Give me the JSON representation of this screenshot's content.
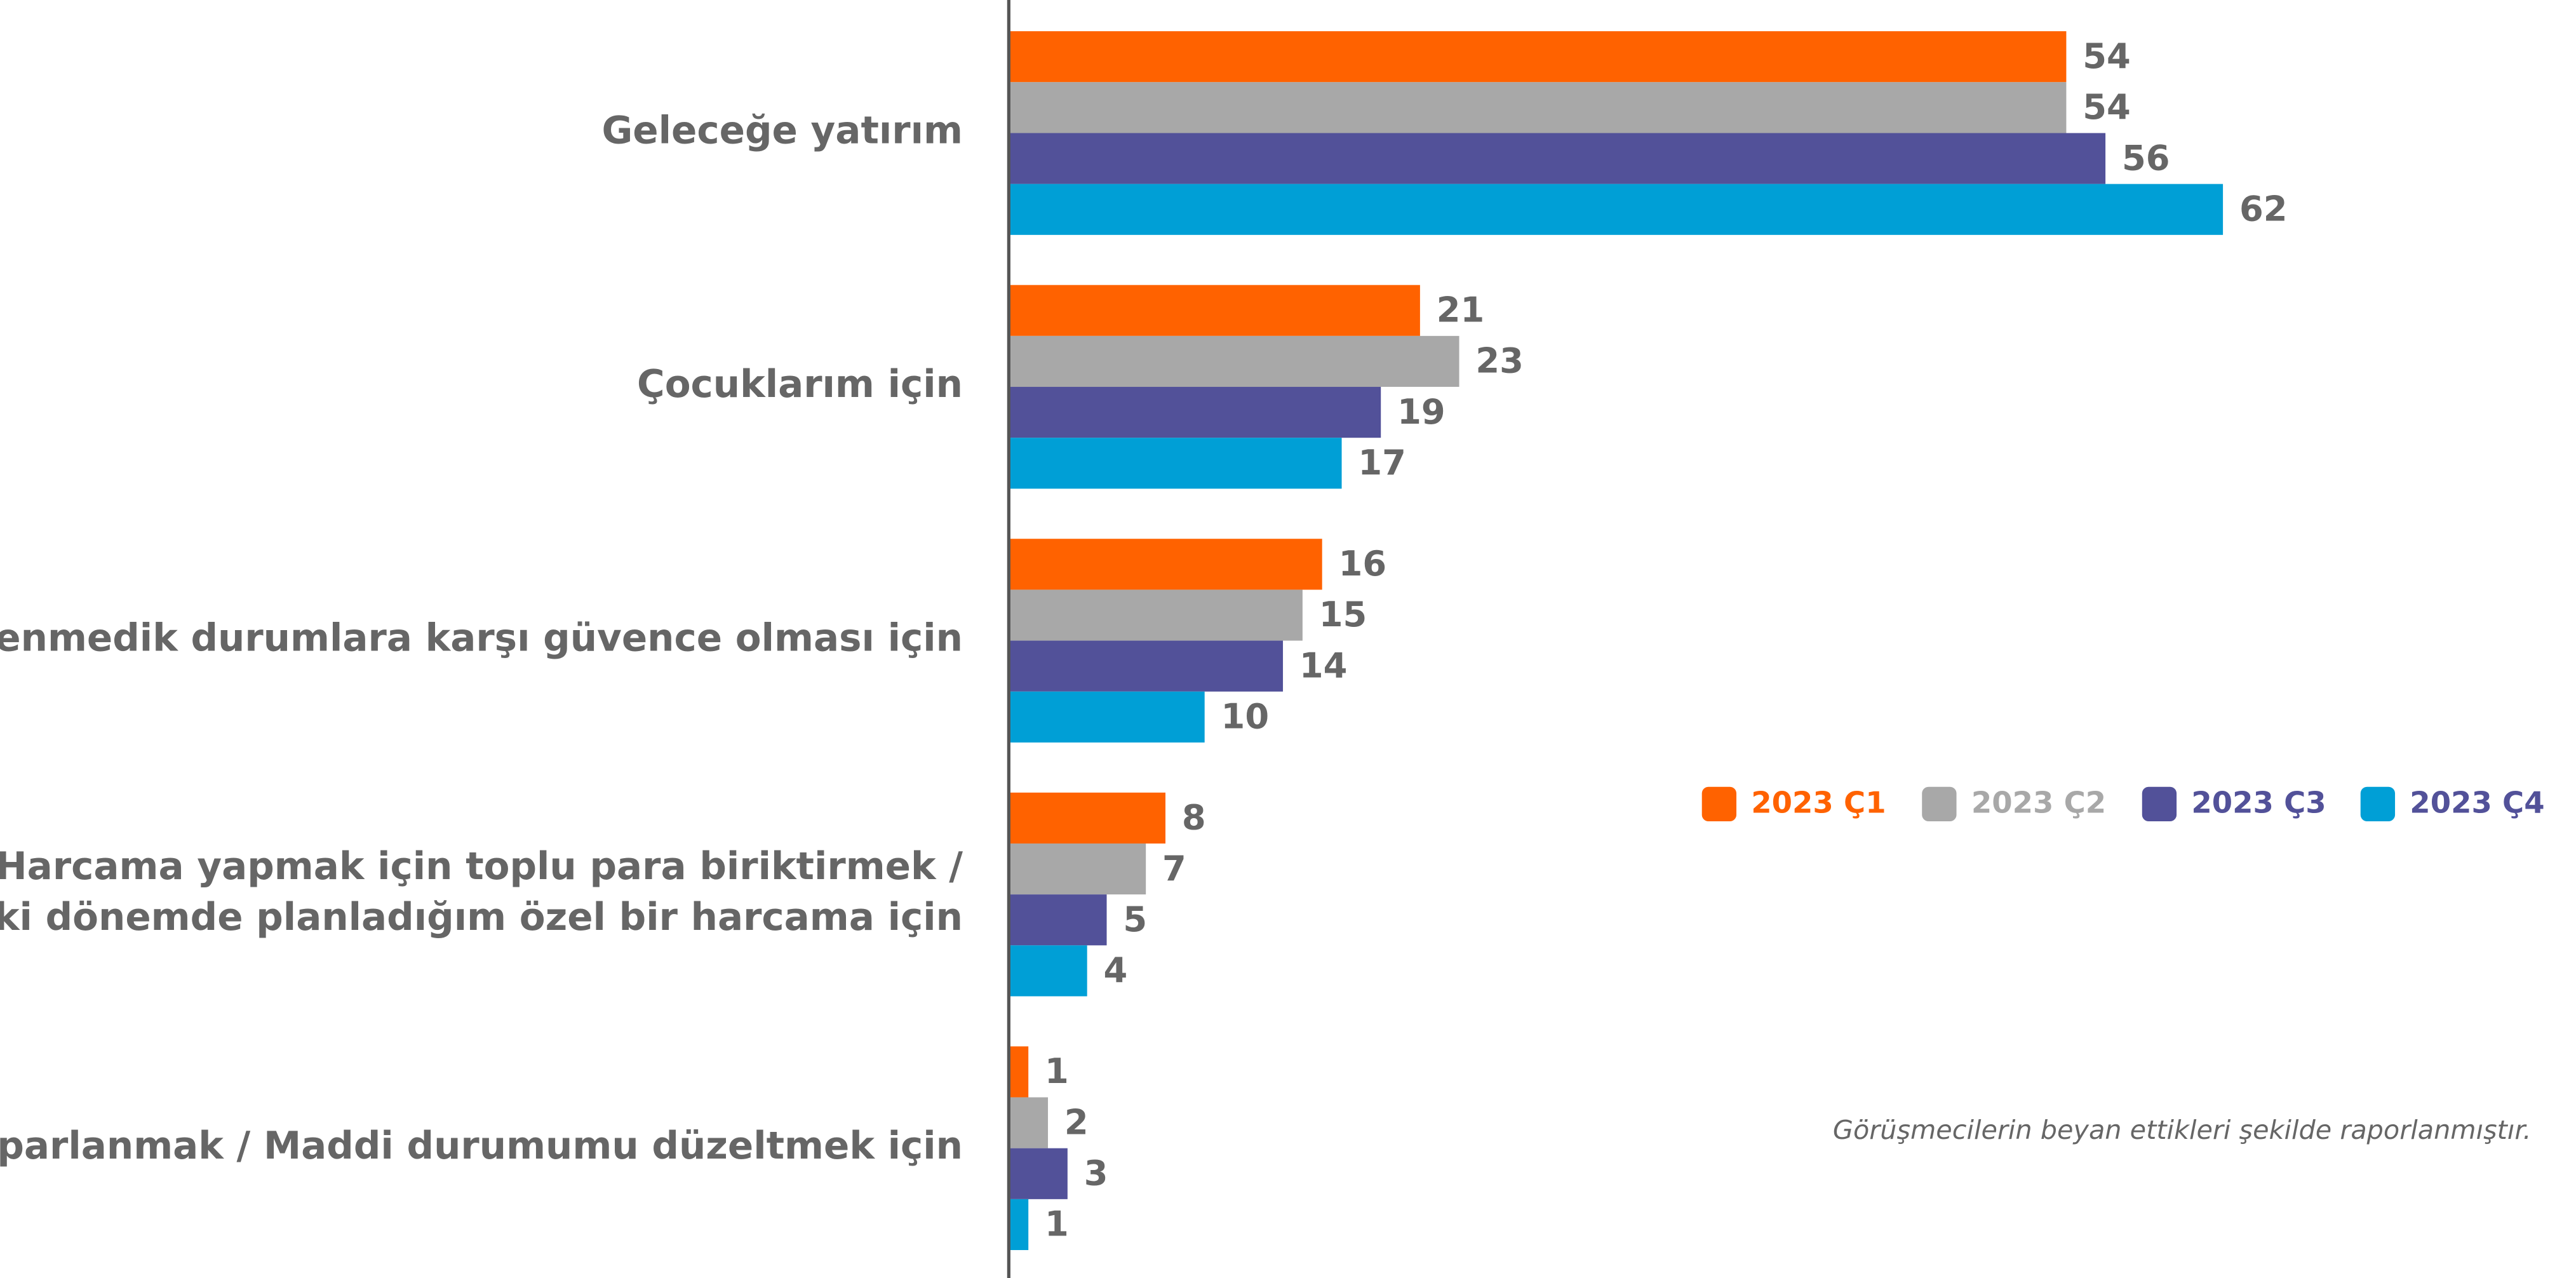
{
  "chart_data": {
    "type": "bar",
    "orientation": "horizontal",
    "categories": [
      "Geleceğe yatırım",
      "Çocuklarım için",
      "Beklenmedik durumlara karşı güvence olması için",
      "Harcama yapmak için toplu para biriktirmek /\nİleriki dönemde planladığım özel bir harcama için",
      "Toparlanmak / Maddi durumumu düzeltmek için"
    ],
    "series": [
      {
        "name": "2023 Ç1",
        "color": "#ff6200",
        "label_color": "#ff6200",
        "values": [
          54,
          21,
          16,
          8,
          1
        ]
      },
      {
        "name": "2023 Ç2",
        "color": "#a8a8a8",
        "label_color": "#a8a8a8",
        "values": [
          54,
          23,
          15,
          7,
          2
        ]
      },
      {
        "name": "2023 Ç3",
        "color": "#525199",
        "label_color": "#525199",
        "values": [
          56,
          19,
          14,
          5,
          3
        ]
      },
      {
        "name": "2023 Ç4",
        "color": "#009fd6",
        "label_color": "#525199",
        "values": [
          62,
          17,
          10,
          4,
          1
        ]
      }
    ],
    "xlim": [
      0,
      78
    ],
    "note": "Görüşmecilerin beyan ettikleri şekilde raporlanmıştır."
  }
}
